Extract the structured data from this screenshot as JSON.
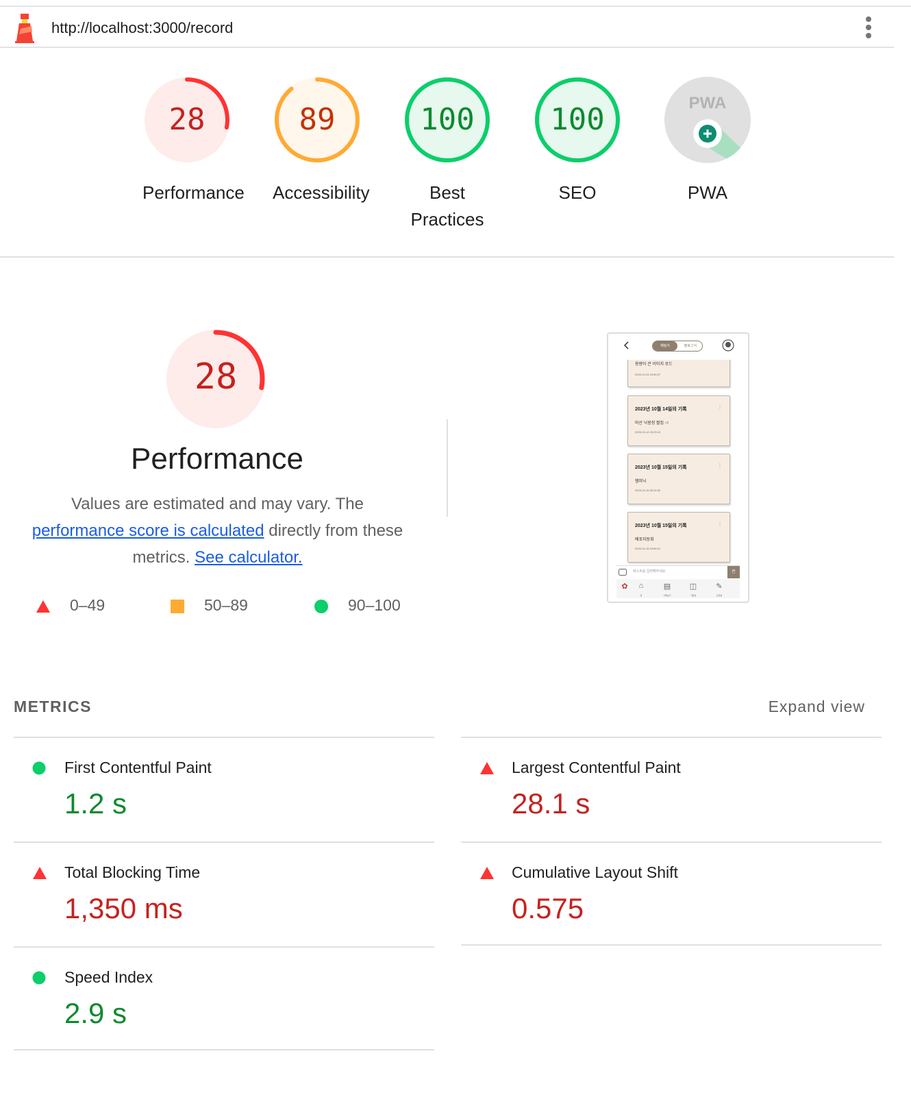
{
  "topbar": {
    "url": "http://localhost:3000/record"
  },
  "scores": [
    {
      "label": "Performance",
      "score": "28",
      "status": "fail",
      "fraction": 0.28
    },
    {
      "label": "Accessibility",
      "score": "89",
      "status": "average",
      "fraction": 0.89
    },
    {
      "label": "Best Practices",
      "score": "100",
      "status": "pass",
      "fraction": 1.0
    },
    {
      "label": "SEO",
      "score": "100",
      "status": "pass",
      "fraction": 1.0
    },
    {
      "label": "PWA",
      "score": "",
      "status": "na",
      "badge_text": "PWA"
    }
  ],
  "performance": {
    "score": "28",
    "fraction": 0.28,
    "title": "Performance",
    "desc_prefix": "Values are estimated and may vary. The ",
    "link1": "performance score is calculated",
    "desc_mid": " directly from these metrics. ",
    "link2": "See calculator."
  },
  "legend": [
    {
      "shape": "triangle",
      "range": "0–49"
    },
    {
      "shape": "square",
      "range": "50–89"
    },
    {
      "shape": "circle",
      "range": "90–100"
    }
  ],
  "screenshot": {
    "tab_active": "채팅식",
    "tab_inactive": "블로그식",
    "cards": [
      {
        "title": "",
        "body": "용량이 큰 이미지 로드",
        "date": "2023-10-13 19:56:37"
      },
      {
        "title": "2023년 10월 14일의 기록",
        "body": "마산 낙원정 쩔집 ~!",
        "date": "2023-10-14 23:29:13"
      },
      {
        "title": "2023년 10월 15일의 기록",
        "body": "햄피닉",
        "date": "2023-10-15 00:24:32"
      },
      {
        "title": "2023년 10월 15일의 기록",
        "body": "배포자동화",
        "date": "2023-10-15 19:56:21"
      }
    ],
    "input_placeholder": "텍스트를 입력해주세요.",
    "send_label": "전",
    "nav_labels": [
      "집",
      "기록보기",
      "기둥집",
      "프로필"
    ]
  },
  "metrics": {
    "title": "METRICS",
    "expand": "Expand view",
    "items": [
      {
        "label": "First Contentful Paint",
        "value": "1.2 s",
        "status": "pass"
      },
      {
        "label": "Largest Contentful Paint",
        "value": "28.1 s",
        "status": "fail"
      },
      {
        "label": "Total Blocking Time",
        "value": "1,350 ms",
        "status": "fail"
      },
      {
        "label": "Cumulative Layout Shift",
        "value": "0.575",
        "status": "fail"
      },
      {
        "label": "Speed Index",
        "value": "2.9 s",
        "status": "pass"
      }
    ]
  },
  "colors": {
    "fail": "#c5221f",
    "fail_ring": "#ff3333",
    "fail_bg": "#fdecea",
    "average": "#c33300",
    "average_ring": "#ffaa33",
    "average_bg": "#fff6ec",
    "pass": "#0c8a2e",
    "pass_ring": "#0cce6b",
    "pass_bg": "#e7f8ee",
    "link": "#1a5ce6"
  }
}
